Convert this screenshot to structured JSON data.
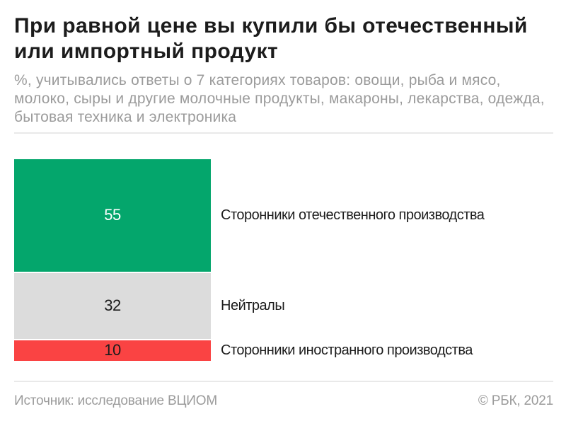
{
  "header": {
    "title_lines": [
      "При равной цене вы купили бы отечественный",
      "или импортный продукт"
    ],
    "subtitle_lines": [
      "%, учитывались ответы о 7 категориях товаров: овощи, рыба и мясо,",
      "молоко, сыры и другие молочные продукты, макароны, лекарства, одежда,",
      "бытовая техника и электроника"
    ]
  },
  "chart_data": {
    "type": "bar",
    "variant": "vertical-stacked-single-column",
    "title": "При равной цене вы купили бы отечественный или импортный продукт",
    "unit": "%",
    "categories": [
      "Сторонники отечественного производства",
      "Нейтралы",
      "Сторонники иностранного производства"
    ],
    "values": [
      55,
      32,
      10
    ],
    "bar_colors": [
      "#04a66c",
      "#dcdcdc",
      "#fa4343"
    ],
    "value_label_colors": [
      "#ffffff",
      "#1c1c1c",
      "#1c1c1c"
    ],
    "legend_position": "right-of-segments",
    "grid": false
  },
  "footer": {
    "source": "Источник: исследование ВЦИОМ",
    "copyright": "© РБК, 2021"
  }
}
